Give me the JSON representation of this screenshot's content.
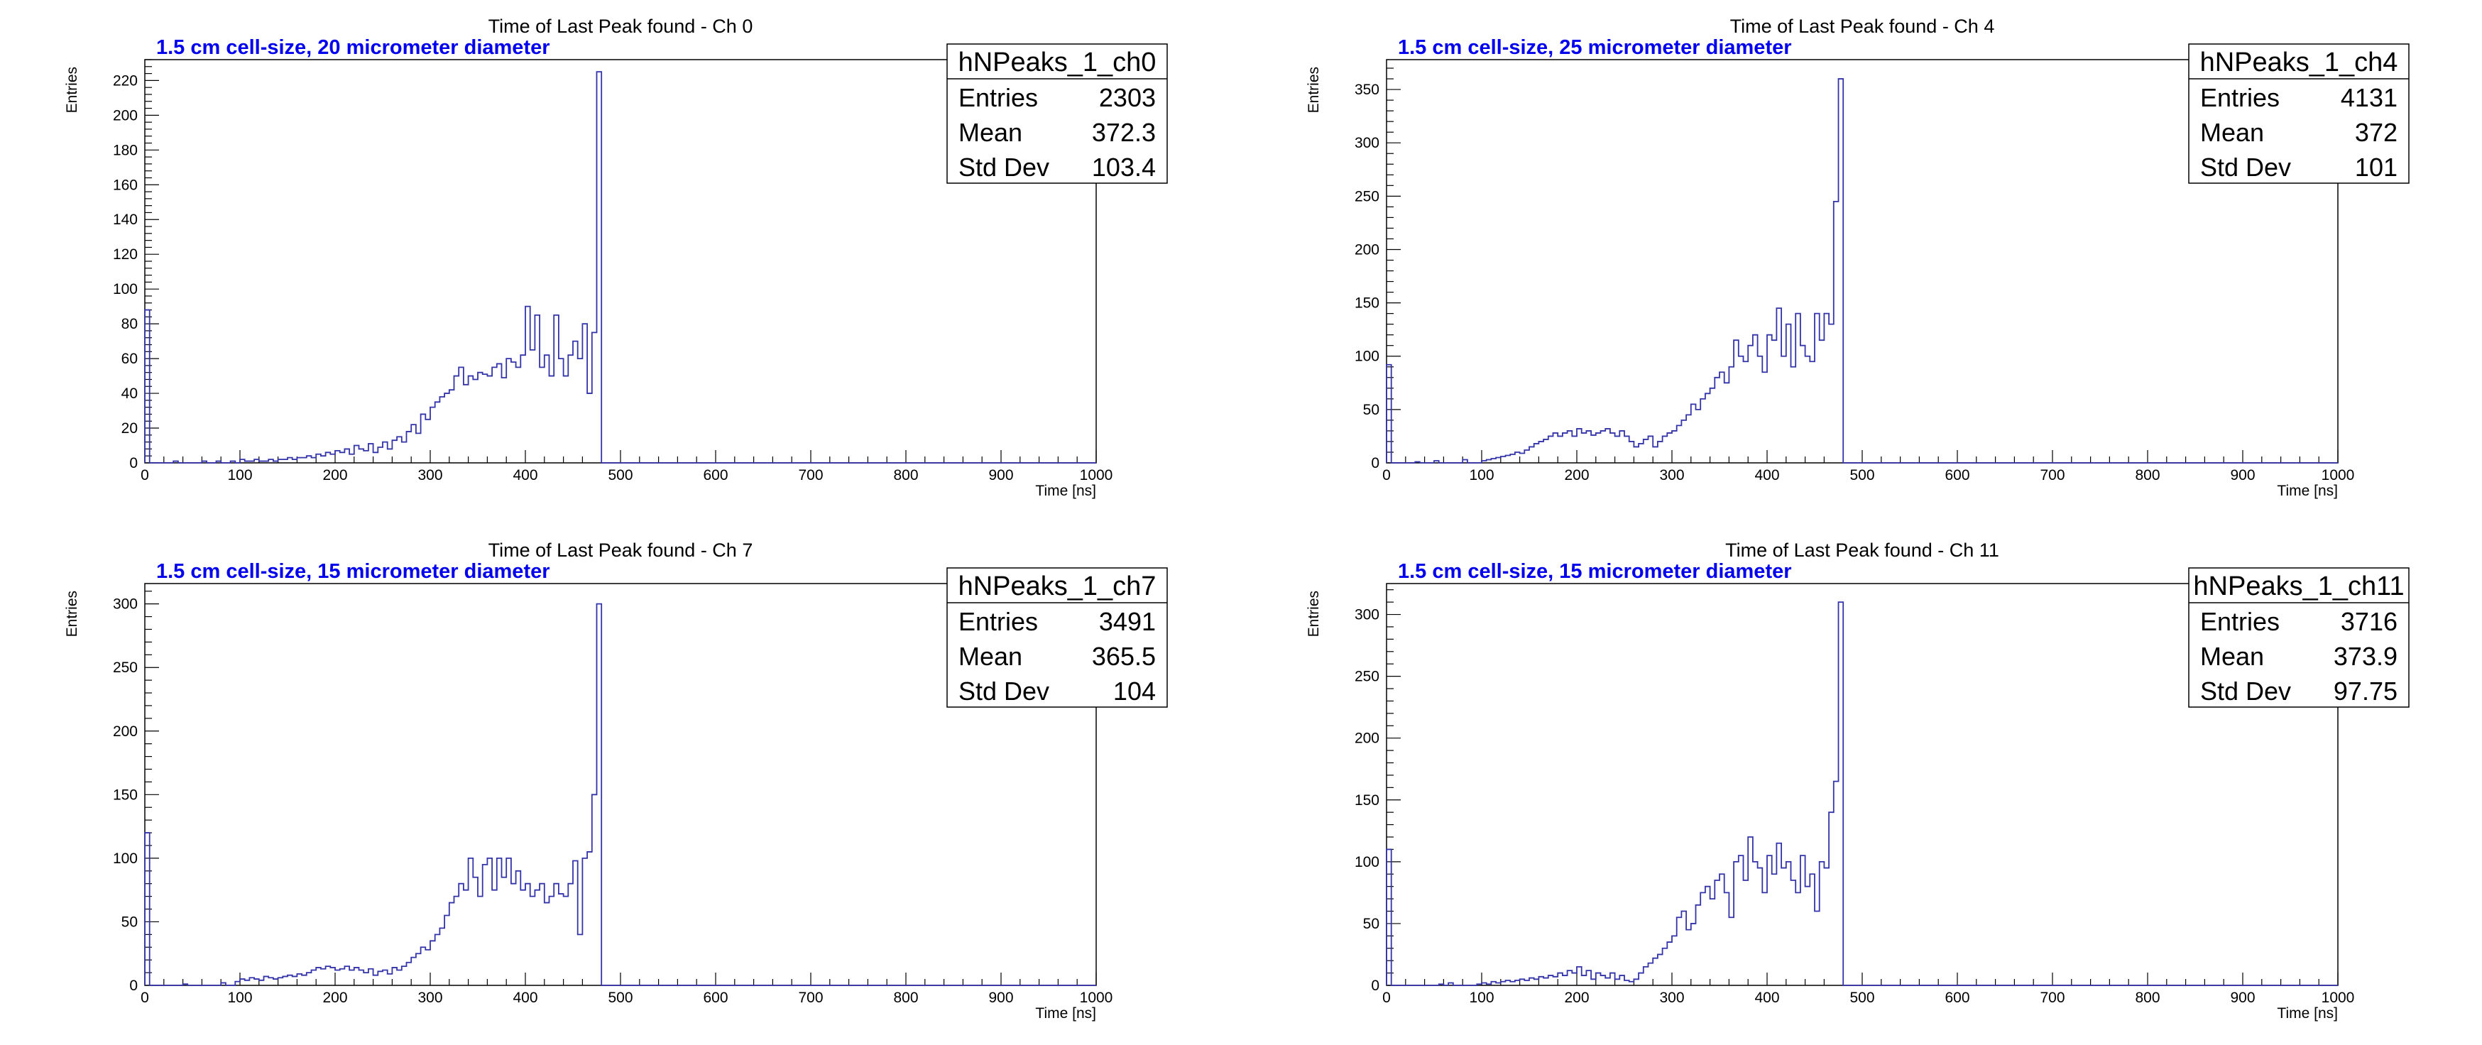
{
  "chart_data": [
    {
      "type": "histogram",
      "title": "Time of Last Peak found - Ch 0",
      "subtitle": "1.5 cm cell-size, 20 micrometer diameter",
      "xlabel": "Time [ns]",
      "ylabel": "Entries",
      "xlim": [
        0,
        1000
      ],
      "ylim": [
        0,
        232
      ],
      "x_ticks": [
        0,
        100,
        200,
        300,
        400,
        500,
        600,
        700,
        800,
        900,
        1000
      ],
      "y_ticks": [
        0,
        20,
        40,
        60,
        80,
        100,
        120,
        140,
        160,
        180,
        200,
        220
      ],
      "bin_width": 5,
      "series": [
        {
          "x": [
            0,
            5,
            10,
            15,
            20,
            25,
            30,
            35,
            40,
            45,
            50,
            55,
            60,
            65,
            70,
            75,
            80,
            85,
            90,
            95,
            100,
            105,
            110,
            115,
            120,
            125,
            130,
            135,
            140,
            145,
            150,
            155,
            160,
            165,
            170,
            175,
            180,
            185,
            190,
            195,
            200,
            205,
            210,
            215,
            220,
            225,
            230,
            235,
            240,
            245,
            250,
            255,
            260,
            265,
            270,
            275,
            280,
            285,
            290,
            295,
            300,
            305,
            310,
            315,
            320,
            325,
            330,
            335,
            340,
            345,
            350,
            355,
            360,
            365,
            370,
            375,
            380,
            385,
            390,
            395,
            400,
            405,
            410,
            415,
            420,
            425,
            430,
            435,
            440,
            445,
            450,
            455,
            460,
            465,
            470,
            475
          ],
          "values": [
            88,
            0,
            0,
            0,
            0,
            0,
            1,
            0,
            0,
            0,
            0,
            0,
            1,
            0,
            0,
            1,
            0,
            0,
            1,
            0,
            2,
            1,
            1,
            2,
            1,
            1,
            2,
            1,
            2,
            2,
            3,
            2,
            3,
            3,
            4,
            3,
            5,
            4,
            6,
            5,
            7,
            6,
            8,
            5,
            10,
            8,
            7,
            11,
            6,
            9,
            12,
            8,
            13,
            15,
            12,
            18,
            22,
            17,
            28,
            25,
            32,
            35,
            38,
            40,
            42,
            50,
            55,
            45,
            50,
            48,
            52,
            51,
            50,
            55,
            57,
            49,
            60,
            58,
            55,
            62,
            90,
            65,
            85,
            55,
            62,
            50,
            85,
            60,
            50,
            62,
            70,
            60,
            80,
            40,
            75,
            225
          ]
        }
      ],
      "stats": {
        "name": "hNPeaks_1_ch0",
        "entries_label": "Entries",
        "entries": "2303",
        "mean_label": "Mean",
        "mean": "372.3",
        "stddev_label": "Std Dev",
        "stddev": "103.4"
      }
    },
    {
      "type": "histogram",
      "title": "Time of Last Peak found - Ch 4",
      "subtitle": "1.5 cm cell-size, 25 micrometer diameter",
      "xlabel": "Time [ns]",
      "ylabel": "Entries",
      "xlim": [
        0,
        1000
      ],
      "ylim": [
        0,
        378
      ],
      "x_ticks": [
        0,
        100,
        200,
        300,
        400,
        500,
        600,
        700,
        800,
        900,
        1000
      ],
      "y_ticks": [
        0,
        50,
        100,
        150,
        200,
        250,
        300,
        350
      ],
      "bin_width": 5,
      "series": [
        {
          "x": [
            0,
            5,
            10,
            15,
            20,
            25,
            30,
            35,
            40,
            45,
            50,
            55,
            60,
            65,
            70,
            75,
            80,
            85,
            90,
            95,
            100,
            105,
            110,
            115,
            120,
            125,
            130,
            135,
            140,
            145,
            150,
            155,
            160,
            165,
            170,
            175,
            180,
            185,
            190,
            195,
            200,
            205,
            210,
            215,
            220,
            225,
            230,
            235,
            240,
            245,
            250,
            255,
            260,
            265,
            270,
            275,
            280,
            285,
            290,
            295,
            300,
            305,
            310,
            315,
            320,
            325,
            330,
            335,
            340,
            345,
            350,
            355,
            360,
            365,
            370,
            375,
            380,
            385,
            390,
            395,
            400,
            405,
            410,
            415,
            420,
            425,
            430,
            435,
            440,
            445,
            450,
            455,
            460,
            465,
            470,
            475
          ],
          "values": [
            92,
            0,
            0,
            0,
            0,
            0,
            1,
            0,
            0,
            0,
            2,
            0,
            0,
            0,
            0,
            0,
            3,
            0,
            0,
            0,
            2,
            3,
            4,
            5,
            6,
            7,
            8,
            10,
            9,
            12,
            15,
            18,
            20,
            22,
            25,
            28,
            25,
            28,
            30,
            25,
            32,
            28,
            30,
            26,
            28,
            30,
            32,
            28,
            25,
            30,
            25,
            20,
            15,
            18,
            22,
            25,
            15,
            20,
            25,
            28,
            30,
            35,
            40,
            45,
            55,
            50,
            60,
            65,
            70,
            80,
            85,
            75,
            90,
            115,
            100,
            95,
            110,
            120,
            100,
            85,
            120,
            115,
            145,
            100,
            130,
            90,
            140,
            110,
            100,
            95,
            140,
            115,
            140,
            130,
            245,
            360
          ]
        }
      ],
      "stats": {
        "name": "hNPeaks_1_ch4",
        "entries_label": "Entries",
        "entries": "4131",
        "mean_label": "Mean",
        "mean": "372",
        "stddev_label": "Std Dev",
        "stddev": "101"
      }
    },
    {
      "type": "histogram",
      "title": "Time of Last Peak found - Ch 7",
      "subtitle": "1.5 cm cell-size, 15 micrometer diameter",
      "xlabel": "Time [ns]",
      "ylabel": "Entries",
      "xlim": [
        0,
        1000
      ],
      "ylim": [
        0,
        316
      ],
      "x_ticks": [
        0,
        100,
        200,
        300,
        400,
        500,
        600,
        700,
        800,
        900,
        1000
      ],
      "y_ticks": [
        0,
        50,
        100,
        150,
        200,
        250,
        300
      ],
      "bin_width": 5,
      "series": [
        {
          "x": [
            0,
            5,
            10,
            15,
            20,
            25,
            30,
            35,
            40,
            45,
            50,
            55,
            60,
            65,
            70,
            75,
            80,
            85,
            90,
            95,
            100,
            105,
            110,
            115,
            120,
            125,
            130,
            135,
            140,
            145,
            150,
            155,
            160,
            165,
            170,
            175,
            180,
            185,
            190,
            195,
            200,
            205,
            210,
            215,
            220,
            225,
            230,
            235,
            240,
            245,
            250,
            255,
            260,
            265,
            270,
            275,
            280,
            285,
            290,
            295,
            300,
            305,
            310,
            315,
            320,
            325,
            330,
            335,
            340,
            345,
            350,
            355,
            360,
            365,
            370,
            375,
            380,
            385,
            390,
            395,
            400,
            405,
            410,
            415,
            420,
            425,
            430,
            435,
            440,
            445,
            450,
            455,
            460,
            465,
            470,
            475
          ],
          "values": [
            120,
            0,
            0,
            0,
            0,
            0,
            0,
            0,
            1,
            0,
            0,
            0,
            0,
            0,
            0,
            0,
            2,
            0,
            0,
            3,
            5,
            4,
            6,
            5,
            4,
            7,
            6,
            5,
            6,
            7,
            8,
            7,
            9,
            8,
            10,
            12,
            14,
            13,
            15,
            14,
            12,
            13,
            15,
            12,
            14,
            12,
            10,
            13,
            8,
            11,
            12,
            9,
            14,
            12,
            15,
            18,
            22,
            25,
            30,
            28,
            35,
            40,
            45,
            55,
            65,
            70,
            80,
            75,
            100,
            85,
            70,
            95,
            100,
            75,
            100,
            85,
            100,
            80,
            90,
            75,
            80,
            70,
            75,
            80,
            65,
            70,
            80,
            72,
            70,
            80,
            98,
            40,
            100,
            105,
            150,
            300
          ]
        }
      ],
      "stats": {
        "name": "hNPeaks_1_ch7",
        "entries_label": "Entries",
        "entries": "3491",
        "mean_label": "Mean",
        "mean": "365.5",
        "stddev_label": "Std Dev",
        "stddev": "104"
      }
    },
    {
      "type": "histogram",
      "title": "Time of Last Peak found - Ch 11",
      "subtitle": "1.5 cm cell-size, 15 micrometer diameter",
      "xlabel": "Time [ns]",
      "ylabel": "Entries",
      "xlim": [
        0,
        1000
      ],
      "ylim": [
        0,
        325
      ],
      "x_ticks": [
        0,
        100,
        200,
        300,
        400,
        500,
        600,
        700,
        800,
        900,
        1000
      ],
      "y_ticks": [
        0,
        50,
        100,
        150,
        200,
        250,
        300
      ],
      "bin_width": 5,
      "series": [
        {
          "x": [
            0,
            5,
            10,
            15,
            20,
            25,
            30,
            35,
            40,
            45,
            50,
            55,
            60,
            65,
            70,
            75,
            80,
            85,
            90,
            95,
            100,
            105,
            110,
            115,
            120,
            125,
            130,
            135,
            140,
            145,
            150,
            155,
            160,
            165,
            170,
            175,
            180,
            185,
            190,
            195,
            200,
            205,
            210,
            215,
            220,
            225,
            230,
            235,
            240,
            245,
            250,
            255,
            260,
            265,
            270,
            275,
            280,
            285,
            290,
            295,
            300,
            305,
            310,
            315,
            320,
            325,
            330,
            335,
            340,
            345,
            350,
            355,
            360,
            365,
            370,
            375,
            380,
            385,
            390,
            395,
            400,
            405,
            410,
            415,
            420,
            425,
            430,
            435,
            440,
            445,
            450,
            455,
            460,
            465,
            470,
            475
          ],
          "values": [
            110,
            0,
            0,
            0,
            0,
            0,
            0,
            0,
            0,
            0,
            0,
            1,
            0,
            2,
            0,
            0,
            0,
            0,
            0,
            1,
            2,
            1,
            3,
            2,
            3,
            4,
            3,
            4,
            5,
            4,
            6,
            5,
            7,
            6,
            8,
            7,
            10,
            8,
            12,
            10,
            15,
            8,
            12,
            5,
            10,
            8,
            6,
            10,
            5,
            8,
            4,
            3,
            5,
            10,
            15,
            18,
            22,
            25,
            30,
            35,
            40,
            55,
            60,
            45,
            50,
            65,
            75,
            80,
            70,
            85,
            90,
            75,
            55,
            100,
            105,
            85,
            120,
            100,
            95,
            75,
            105,
            90,
            115,
            95,
            100,
            85,
            75,
            105,
            80,
            90,
            60,
            100,
            95,
            140,
            165,
            310
          ]
        }
      ],
      "stats": {
        "name": "hNPeaks_1_ch11",
        "entries_label": "Entries",
        "entries": "3716",
        "mean_label": "Mean",
        "mean": "373.9",
        "stddev_label": "Std Dev",
        "stddev": "97.75"
      }
    }
  ]
}
